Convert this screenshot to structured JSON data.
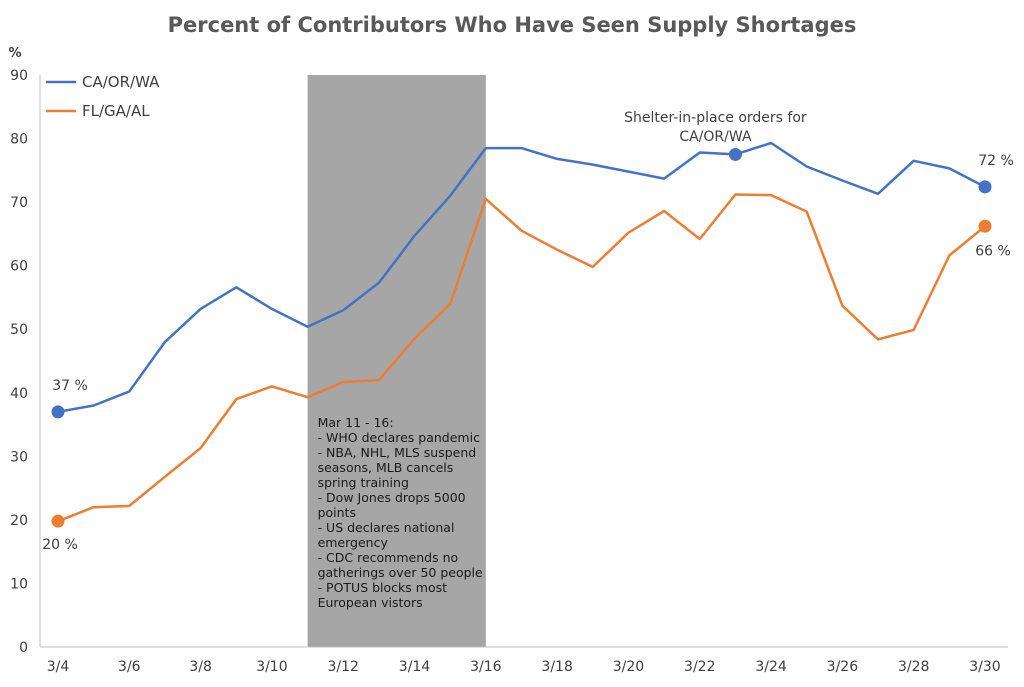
{
  "chart_data": {
    "type": "line",
    "title": "Percent of Contributors Who Have Seen Supply Shortages",
    "ylabel": "%",
    "xlabel": "",
    "ylim": [
      0,
      90
    ],
    "yticks": [
      0,
      10,
      20,
      30,
      40,
      50,
      60,
      70,
      80,
      90
    ],
    "x": [
      "3/4",
      "3/5",
      "3/6",
      "3/7",
      "3/8",
      "3/9",
      "3/10",
      "3/11",
      "3/12",
      "3/13",
      "3/14",
      "3/15",
      "3/16",
      "3/17",
      "3/18",
      "3/19",
      "3/20",
      "3/21",
      "3/22",
      "3/23",
      "3/24",
      "3/25",
      "3/26",
      "3/27",
      "3/28",
      "3/29",
      "3/30"
    ],
    "xtick_labels": [
      "3/4",
      "3/6",
      "3/8",
      "3/10",
      "3/12",
      "3/14",
      "3/16",
      "3/18",
      "3/20",
      "3/22",
      "3/24",
      "3/26",
      "3/28",
      "3/30"
    ],
    "grid": false,
    "legend_position": "top-left",
    "series": [
      {
        "name": "CA/OR/WA",
        "color": "#4472C4",
        "values": [
          37,
          38,
          40.2,
          48,
          53.2,
          56.6,
          53.2,
          50.4,
          53,
          57.3,
          64.7,
          71,
          78.5,
          78.5,
          76.8,
          75.9,
          74.8,
          73.7,
          77.8,
          77.5,
          79.3,
          75.6,
          73.4,
          71.3,
          76.5,
          75.3,
          72.4
        ]
      },
      {
        "name": "FL/GA/AL",
        "color": "#ED7D31",
        "values": [
          19.8,
          22,
          22.2,
          26.8,
          31.3,
          39,
          41,
          39.3,
          41.7,
          42,
          48.5,
          54,
          70.5,
          65.5,
          62.5,
          59.8,
          65.2,
          68.6,
          64.2,
          71.2,
          71.1,
          68.5,
          53.7,
          48.4,
          49.9,
          61.6,
          66.2
        ]
      }
    ],
    "shaded_region": {
      "from": "3/11",
      "to": "3/16",
      "color": "#A6A6A6",
      "note_lines": [
        "Mar 11 - 16:",
        "- WHO declares pandemic",
        "- NBA, NHL, MLS suspend",
        "seasons, MLB cancels",
        "spring training",
        "- Dow Jones drops 5000",
        "points",
        "- US declares national",
        "emergency",
        "- CDC recommends no",
        "gatherings over 50 people",
        "- POTUS blocks most",
        "European vistors"
      ]
    },
    "callout": {
      "series": "CA/OR/WA",
      "x": "3/23",
      "lines": [
        "Shelter-in-place orders for",
        "CA/OR/WA"
      ]
    },
    "data_labels": [
      {
        "series": "CA/OR/WA",
        "x": "3/4",
        "text": "37 %"
      },
      {
        "series": "FL/GA/AL",
        "x": "3/4",
        "text": "20 %"
      },
      {
        "series": "CA/OR/WA",
        "x": "3/30",
        "text": "72 %"
      },
      {
        "series": "FL/GA/AL",
        "x": "3/30",
        "text": "66 %"
      }
    ]
  }
}
